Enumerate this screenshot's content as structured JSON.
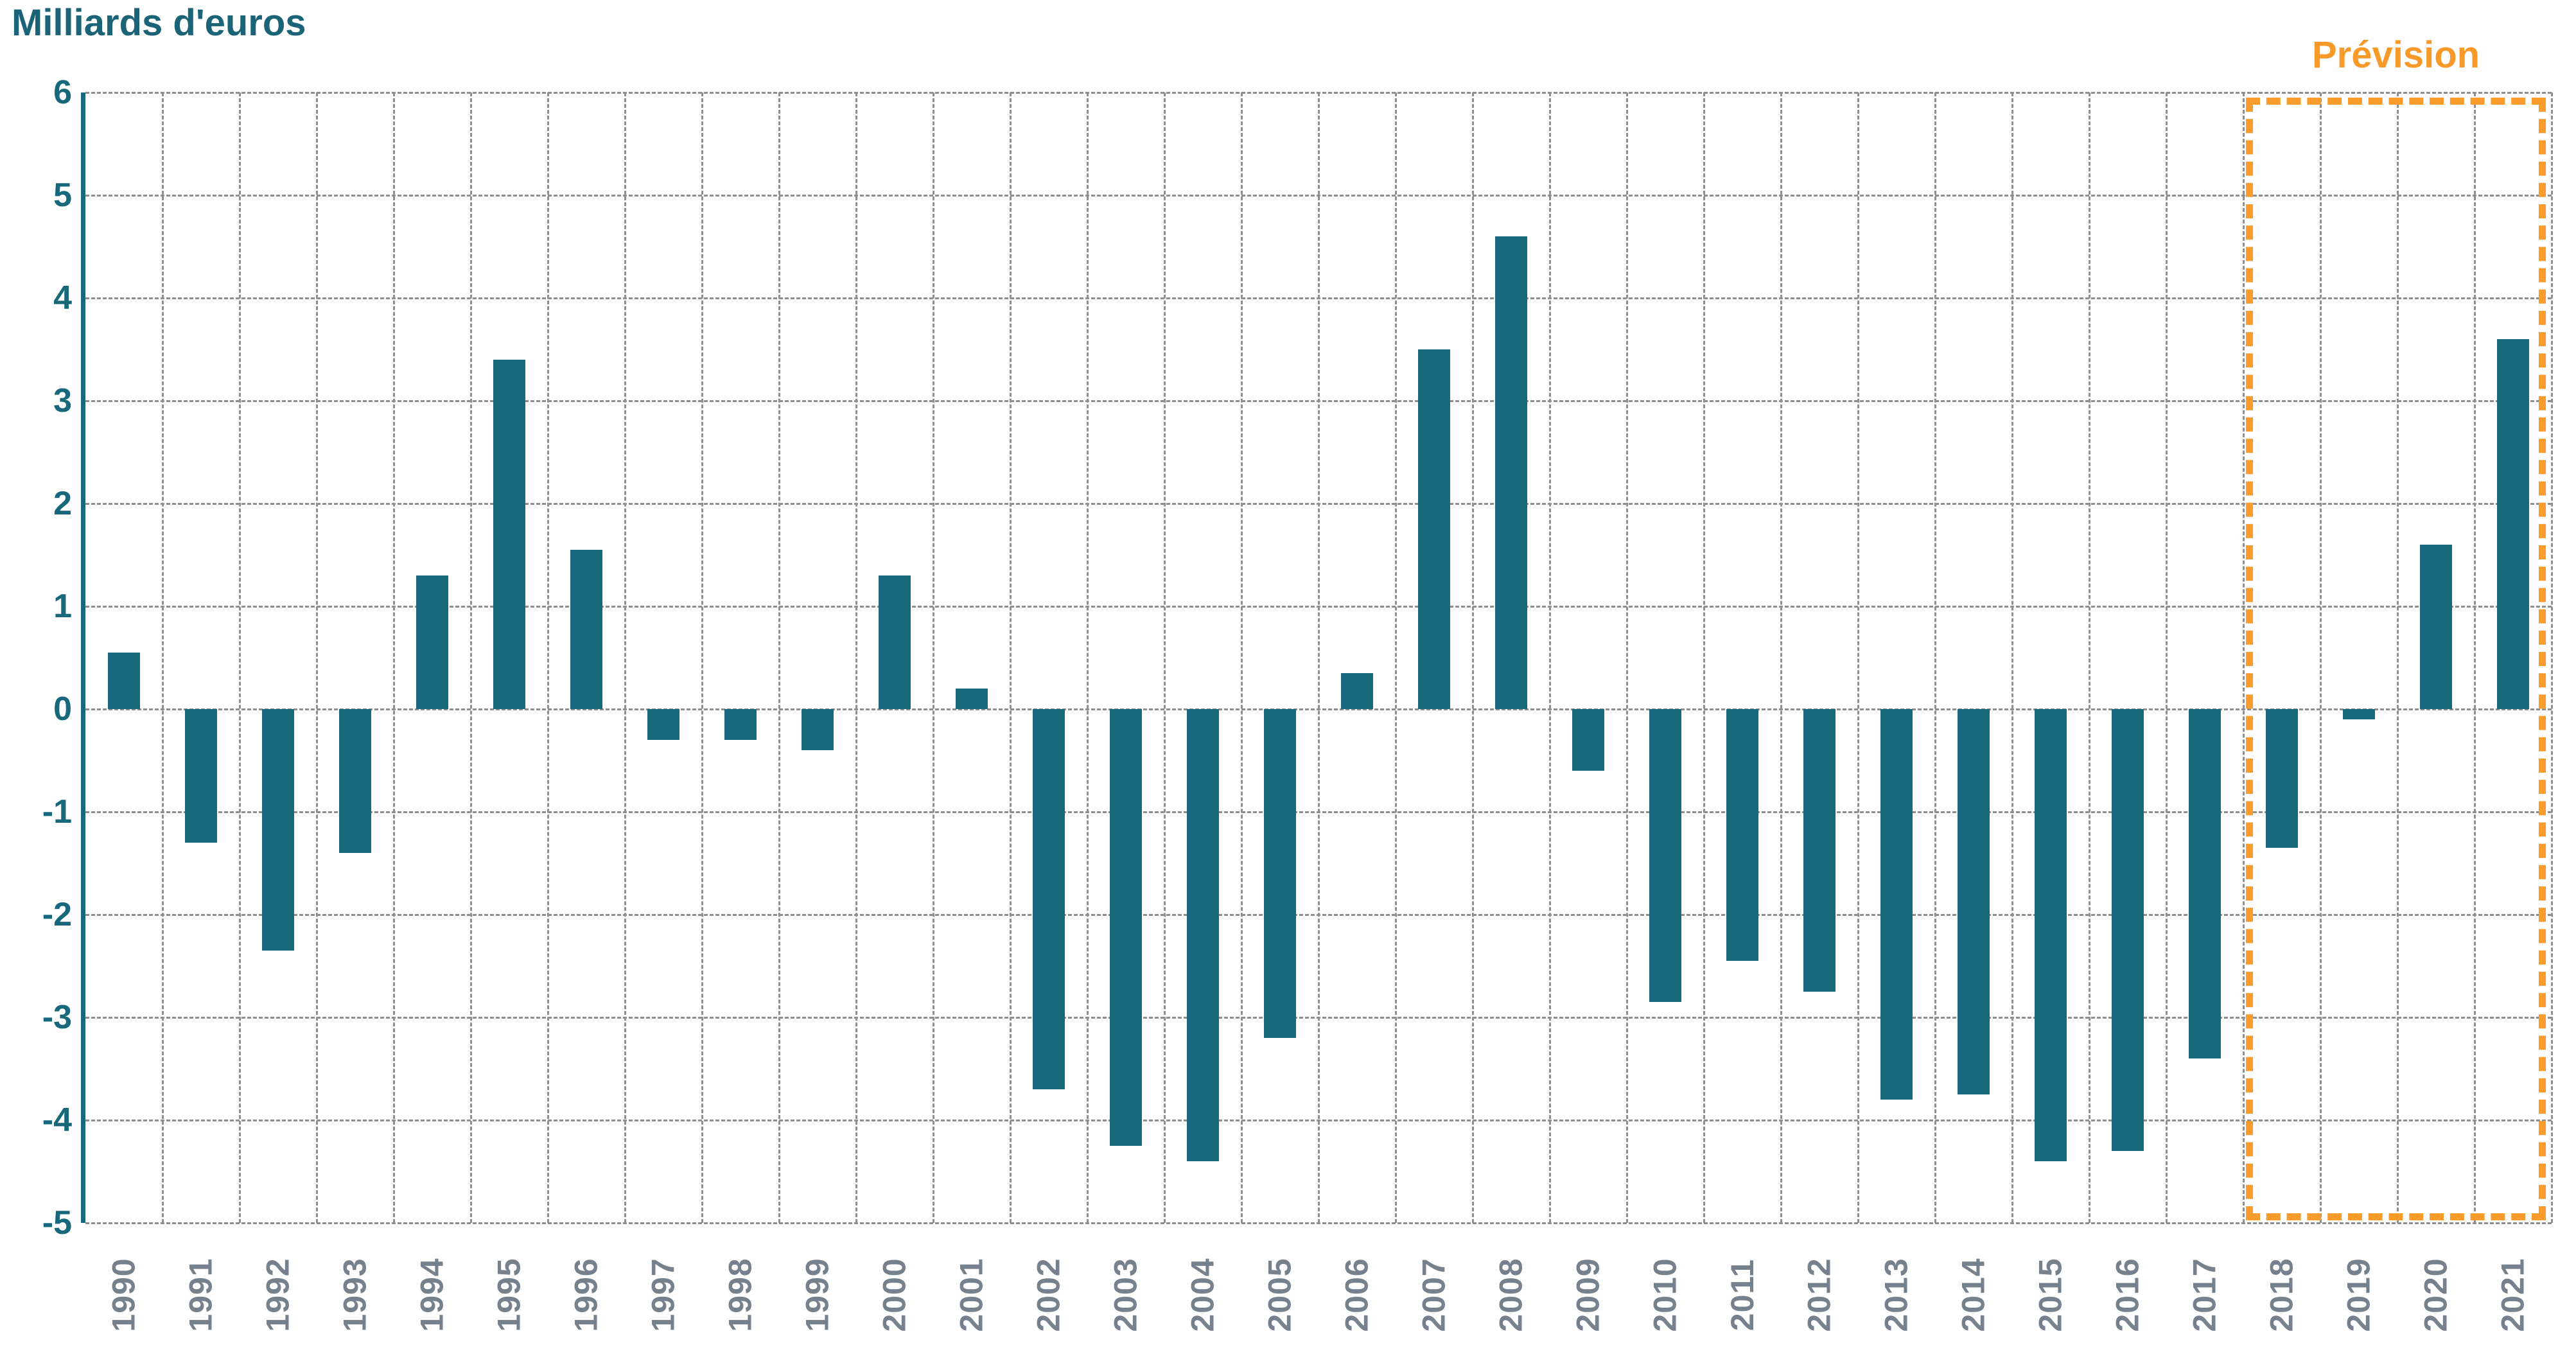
{
  "title": "Milliards d'euros",
  "prevision": {
    "label": "Prévision",
    "start_category": "2018",
    "end_category": "2021"
  },
  "colors": {
    "bar": "#17687A",
    "axis_line": "#17687A",
    "title_text": "#1B6478",
    "y_tick_text": "#17687A",
    "x_tick_text": "#76818E",
    "gridline": "#8F8F8F",
    "prevision_orange": "#F99C2C"
  },
  "chart_data": {
    "type": "bar",
    "title": "Milliards d'euros",
    "ylabel": "Milliards d'euros",
    "xlabel": "",
    "categories": [
      "1990",
      "1991",
      "1992",
      "1993",
      "1994",
      "1995",
      "1996",
      "1997",
      "1998",
      "1999",
      "2000",
      "2001",
      "2002",
      "2003",
      "2004",
      "2005",
      "2006",
      "2007",
      "2008",
      "2009",
      "2010",
      "2011",
      "2012",
      "2013",
      "2014",
      "2015",
      "2016",
      "2017",
      "2018",
      "2019",
      "2020",
      "2021"
    ],
    "values": [
      0.55,
      -1.3,
      -2.35,
      -1.4,
      1.3,
      3.4,
      1.55,
      -0.3,
      -0.3,
      -0.4,
      1.3,
      0.2,
      -3.7,
      -4.25,
      -4.4,
      -3.2,
      0.35,
      3.5,
      4.6,
      -0.6,
      -2.85,
      -2.45,
      -2.75,
      -3.8,
      -3.75,
      -4.4,
      -4.3,
      -3.4,
      -1.35,
      -0.1,
      1.6,
      3.6
    ],
    "ylim": [
      -5,
      6
    ],
    "ytick_step": 1,
    "grid": "dashed-major-both",
    "legend_position": "none",
    "annotation": {
      "label": "Prévision",
      "start_category": "2018",
      "end_category": "2021"
    }
  }
}
